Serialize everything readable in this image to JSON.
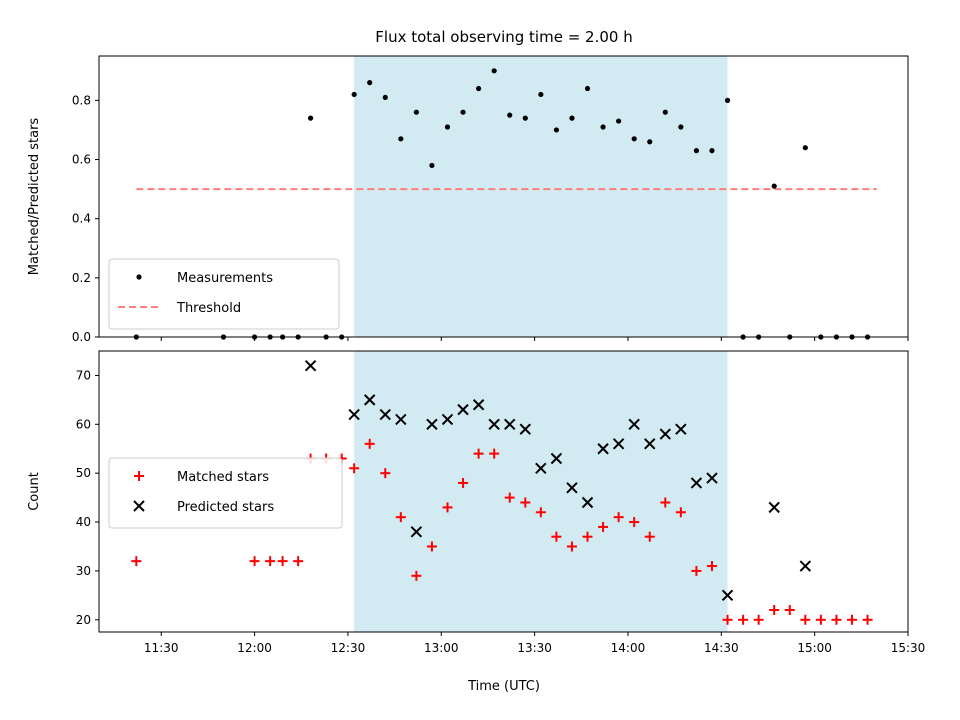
{
  "chart_data": {
    "type": "scatter",
    "title": "Flux total observing time = 2.00 h",
    "xlabel": "Time (UTC)",
    "x_ticks": [
      "11:30",
      "12:00",
      "12:30",
      "13:00",
      "13:30",
      "14:00",
      "14:30",
      "15:00",
      "15:30"
    ],
    "xlim": [
      "11:10",
      "15:30"
    ],
    "highlight_span": [
      "12:32",
      "14:32"
    ],
    "colors": {
      "highlight": "#add8e6",
      "measurement": "#000000",
      "threshold": "#ff7f7f",
      "matched": "#ff0000",
      "predicted": "#000000"
    },
    "panels": [
      {
        "ylabel": "Matched/Predicted stars",
        "ylim": [
          0,
          0.95
        ],
        "y_ticks": [
          "0.0",
          "0.2",
          "0.4",
          "0.6",
          "0.8"
        ],
        "legend_position": "lower-left",
        "threshold": {
          "name": "Threshold",
          "y": 0.5,
          "x": [
            "11:22",
            "15:20"
          ]
        },
        "series": [
          {
            "name": "Measurements",
            "marker": "dot",
            "points": [
              [
                "11:22",
                0.0
              ],
              [
                "11:50",
                0.0
              ],
              [
                "12:00",
                0.0
              ],
              [
                "12:05",
                0.0
              ],
              [
                "12:09",
                0.0
              ],
              [
                "12:14",
                0.0
              ],
              [
                "12:18",
                0.74
              ],
              [
                "12:23",
                0.0
              ],
              [
                "12:28",
                0.0
              ],
              [
                "12:32",
                0.82
              ],
              [
                "12:37",
                0.86
              ],
              [
                "12:42",
                0.81
              ],
              [
                "12:47",
                0.67
              ],
              [
                "12:52",
                0.76
              ],
              [
                "12:57",
                0.58
              ],
              [
                "13:02",
                0.71
              ],
              [
                "13:07",
                0.76
              ],
              [
                "13:12",
                0.84
              ],
              [
                "13:17",
                0.9
              ],
              [
                "13:22",
                0.75
              ],
              [
                "13:27",
                0.74
              ],
              [
                "13:32",
                0.82
              ],
              [
                "13:37",
                0.7
              ],
              [
                "13:42",
                0.74
              ],
              [
                "13:47",
                0.84
              ],
              [
                "13:52",
                0.71
              ],
              [
                "13:57",
                0.73
              ],
              [
                "14:02",
                0.67
              ],
              [
                "14:07",
                0.66
              ],
              [
                "14:12",
                0.76
              ],
              [
                "14:17",
                0.71
              ],
              [
                "14:22",
                0.63
              ],
              [
                "14:27",
                0.63
              ],
              [
                "14:32",
                0.8
              ],
              [
                "14:37",
                0.0
              ],
              [
                "14:42",
                0.0
              ],
              [
                "14:47",
                0.51
              ],
              [
                "14:52",
                0.0
              ],
              [
                "14:57",
                0.64
              ],
              [
                "15:02",
                0.0
              ],
              [
                "15:07",
                0.0
              ],
              [
                "15:12",
                0.0
              ],
              [
                "15:17",
                0.0
              ]
            ]
          }
        ]
      },
      {
        "ylabel": "Count",
        "ylim": [
          17.5,
          75
        ],
        "y_ticks": [
          "20",
          "30",
          "40",
          "50",
          "60",
          "70"
        ],
        "legend_position": "center-left",
        "series": [
          {
            "name": "Matched stars",
            "marker": "plus",
            "points": [
              [
                "11:22",
                32
              ],
              [
                "12:00",
                32
              ],
              [
                "12:05",
                32
              ],
              [
                "12:09",
                32
              ],
              [
                "12:14",
                32
              ],
              [
                "12:18",
                53
              ],
              [
                "12:23",
                53
              ],
              [
                "12:28",
                53
              ],
              [
                "12:32",
                51
              ],
              [
                "12:37",
                56
              ],
              [
                "12:42",
                50
              ],
              [
                "12:47",
                41
              ],
              [
                "12:52",
                29
              ],
              [
                "12:57",
                35
              ],
              [
                "13:02",
                43
              ],
              [
                "13:07",
                48
              ],
              [
                "13:12",
                54
              ],
              [
                "13:17",
                54
              ],
              [
                "13:22",
                45
              ],
              [
                "13:27",
                44
              ],
              [
                "13:32",
                42
              ],
              [
                "13:37",
                37
              ],
              [
                "13:42",
                35
              ],
              [
                "13:47",
                37
              ],
              [
                "13:52",
                39
              ],
              [
                "13:57",
                41
              ],
              [
                "14:02",
                40
              ],
              [
                "14:07",
                37
              ],
              [
                "14:12",
                44
              ],
              [
                "14:17",
                42
              ],
              [
                "14:22",
                30
              ],
              [
                "14:27",
                31
              ],
              [
                "14:32",
                20
              ],
              [
                "14:37",
                20
              ],
              [
                "14:42",
                20
              ],
              [
                "14:47",
                22
              ],
              [
                "14:52",
                22
              ],
              [
                "14:57",
                20
              ],
              [
                "15:02",
                20
              ],
              [
                "15:07",
                20
              ],
              [
                "15:12",
                20
              ],
              [
                "15:17",
                20
              ]
            ]
          },
          {
            "name": "Predicted stars",
            "marker": "x",
            "points": [
              [
                "12:18",
                72
              ],
              [
                "12:32",
                62
              ],
              [
                "12:37",
                65
              ],
              [
                "12:42",
                62
              ],
              [
                "12:47",
                61
              ],
              [
                "12:52",
                38
              ],
              [
                "12:57",
                60
              ],
              [
                "13:02",
                61
              ],
              [
                "13:07",
                63
              ],
              [
                "13:12",
                64
              ],
              [
                "13:17",
                60
              ],
              [
                "13:22",
                60
              ],
              [
                "13:27",
                59
              ],
              [
                "13:32",
                51
              ],
              [
                "13:37",
                53
              ],
              [
                "13:42",
                47
              ],
              [
                "13:47",
                44
              ],
              [
                "13:52",
                55
              ],
              [
                "13:57",
                56
              ],
              [
                "14:02",
                60
              ],
              [
                "14:07",
                56
              ],
              [
                "14:12",
                58
              ],
              [
                "14:17",
                59
              ],
              [
                "14:22",
                48
              ],
              [
                "14:27",
                49
              ],
              [
                "14:32",
                25
              ],
              [
                "14:47",
                43
              ],
              [
                "14:57",
                31
              ]
            ]
          }
        ]
      }
    ]
  }
}
